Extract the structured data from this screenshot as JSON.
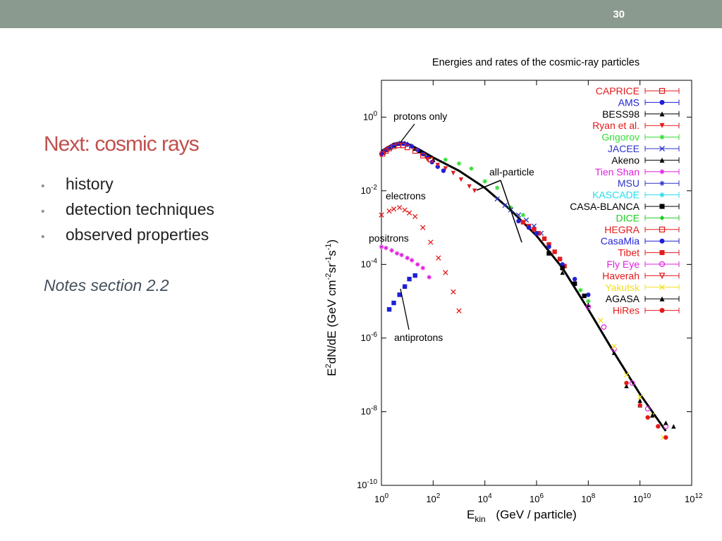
{
  "slide": {
    "number": "30",
    "title": "Next: cosmic rays",
    "bullets": [
      "history",
      "detection techniques",
      "observed properties"
    ],
    "notes": "Notes section 2.2"
  },
  "chart_data": {
    "type": "scatter",
    "title": "Energies and rates of the cosmic-ray particles",
    "xlabel_main": "E",
    "xlabel_sub": "kin",
    "xlabel_rest": "(GeV / particle)",
    "ylabel_main": "E",
    "ylabel_sup": "2",
    "ylabel_rest": "dN/dE   (GeV cm",
    "ylabel_units": [
      "-2",
      "sr",
      "-1",
      "s",
      "-1",
      ")"
    ],
    "x_scale": "log",
    "y_scale": "log",
    "xlim": [
      1,
      1000000000000
    ],
    "ylim": [
      1e-10,
      10
    ],
    "x_ticks": [
      {
        "exp": "0"
      },
      {
        "exp": "2"
      },
      {
        "exp": "4"
      },
      {
        "exp": "6"
      },
      {
        "exp": "8"
      },
      {
        "exp": "10"
      },
      {
        "exp": "12"
      }
    ],
    "y_ticks": [
      {
        "exp": "0"
      },
      {
        "exp": "-2"
      },
      {
        "exp": "-4"
      },
      {
        "exp": "-6"
      },
      {
        "exp": "-8"
      },
      {
        "exp": "-10"
      }
    ],
    "tick_base": "10",
    "grid": false,
    "legend_position": "top-right",
    "legend": [
      {
        "name": "CAPRICE",
        "color": "#e31a1c",
        "marker": "open-square"
      },
      {
        "name": "AMS",
        "color": "#1f1fd6",
        "marker": "circle"
      },
      {
        "name": "BESS98",
        "color": "#000000",
        "marker": "triangle"
      },
      {
        "name": "Ryan et al.",
        "color": "#e31a1c",
        "marker": "triangle-down"
      },
      {
        "name": "Grigorov",
        "color": "#33dd33",
        "marker": "asterisk"
      },
      {
        "name": "JACEE",
        "color": "#2b35c9",
        "marker": "cross"
      },
      {
        "name": "Akeno",
        "color": "#000000",
        "marker": "triangle"
      },
      {
        "name": "Tien Shan",
        "color": "#e020e0",
        "marker": "asterisk"
      },
      {
        "name": "MSU",
        "color": "#2b35c9",
        "marker": "asterisk"
      },
      {
        "name": "KASCADE",
        "color": "#22ddee",
        "marker": "asterisk"
      },
      {
        "name": "CASA-BLANCA",
        "color": "#000000",
        "marker": "square"
      },
      {
        "name": "DICE",
        "color": "#22cc22",
        "marker": "diamond"
      },
      {
        "name": "HEGRA",
        "color": "#e31a1c",
        "marker": "open-square"
      },
      {
        "name": "CasaMia",
        "color": "#1f1fd6",
        "marker": "circle"
      },
      {
        "name": "Tibet",
        "color": "#e31a1c",
        "marker": "square"
      },
      {
        "name": "Fly Eye",
        "color": "#e020e0",
        "marker": "open-circle"
      },
      {
        "name": "Haverah",
        "color": "#e31a1c",
        "marker": "open-triangle-down"
      },
      {
        "name": "Yakutsk",
        "color": "#f0e020",
        "marker": "cross"
      },
      {
        "name": "AGASA",
        "color": "#000000",
        "marker": "triangle"
      },
      {
        "name": "HiRes",
        "color": "#e31a1c",
        "marker": "circle"
      }
    ],
    "annotations": [
      "protons only",
      "all-particle",
      "electrons",
      "positrons",
      "antiprotons"
    ],
    "series": [
      {
        "name": "BESS98",
        "color": "#000000",
        "x": [
          1.2,
          1.6,
          2.2,
          3,
          4,
          5,
          6,
          8,
          10,
          14,
          20,
          30,
          45,
          70,
          100
        ],
        "y": [
          0.11,
          0.13,
          0.15,
          0.17,
          0.19,
          0.2,
          0.2,
          0.2,
          0.19,
          0.17,
          0.14,
          0.12,
          0.1,
          0.085,
          0.07
        ]
      },
      {
        "name": "AMS",
        "color": "#1f1fd6",
        "x": [
          1,
          1.3,
          1.8,
          2.5,
          3.5,
          5,
          7,
          10,
          15,
          25,
          40,
          60,
          90,
          150,
          250
        ],
        "y": [
          0.1,
          0.12,
          0.14,
          0.16,
          0.18,
          0.19,
          0.19,
          0.18,
          0.16,
          0.13,
          0.1,
          0.08,
          0.06,
          0.045,
          0.035
        ]
      },
      {
        "name": "CAPRICE",
        "color": "#e31a1c",
        "x": [
          1.1,
          1.5,
          2,
          3,
          4.5,
          7,
          10,
          20,
          40,
          80
        ],
        "y": [
          0.1,
          0.12,
          0.14,
          0.16,
          0.17,
          0.17,
          0.15,
          0.12,
          0.09,
          0.07
        ]
      },
      {
        "name": "Ryan et al.",
        "color": "#e31a1c",
        "x": [
          60,
          150,
          300,
          600,
          1200,
          2500,
          4000
        ],
        "y": [
          0.07,
          0.05,
          0.04,
          0.03,
          0.02,
          0.013,
          0.01
        ]
      },
      {
        "name": "Grigorov",
        "color": "#33dd33",
        "x": [
          300,
          1000,
          3000,
          10000,
          30000,
          100000,
          300000,
          50000000,
          100000000
        ],
        "y": [
          0.07,
          0.055,
          0.04,
          0.018,
          0.012,
          0.0035,
          0.0022,
          2e-05,
          1e-05
        ]
      },
      {
        "name": "JACEE",
        "color": "#2b35c9",
        "x": [
          30000,
          60000,
          100000,
          200000,
          400000,
          800000,
          1500000
        ],
        "y": [
          0.006,
          0.004,
          0.003,
          0.0022,
          0.0016,
          0.0011,
          0.0007
        ]
      },
      {
        "name": "Tibet",
        "color": "#e31a1c",
        "x": [
          300000,
          500000,
          800000,
          1200000,
          2000000,
          3000000,
          5000000,
          8000000,
          12000000
        ],
        "y": [
          0.0014,
          0.0011,
          0.0009,
          0.0007,
          0.0005,
          0.00035,
          0.00022,
          0.00014,
          9e-05
        ]
      },
      {
        "name": "CasaMia",
        "color": "#1f1fd6",
        "x": [
          200000,
          500000,
          1000000,
          3000000,
          10000000,
          30000000,
          100000000
        ],
        "y": [
          0.0015,
          0.001,
          0.0007,
          0.0003,
          0.0001,
          4e-05,
          1.5e-05
        ]
      },
      {
        "name": "CASA-BLANCA",
        "color": "#000000",
        "x": [
          3000000,
          10000000,
          30000000,
          70000000
        ],
        "y": [
          0.0002,
          8e-05,
          3e-05,
          1.4e-05
        ]
      },
      {
        "name": "Akeno",
        "color": "#000000",
        "x": [
          10000000,
          100000000,
          1000000000,
          10000000000
        ],
        "y": [
          6e-05,
          8e-06,
          4e-07,
          2e-08
        ]
      },
      {
        "name": "Fly Eye",
        "color": "#e020e0",
        "x": [
          100000000,
          400000000,
          1000000000,
          5000000000,
          20000000000,
          100000000000
        ],
        "y": [
          7e-06,
          2e-06,
          5e-07,
          6e-08,
          1.2e-08,
          4e-09
        ]
      },
      {
        "name": "Yakutsk",
        "color": "#f0e020",
        "x": [
          300000000,
          1000000000,
          3000000000,
          10000000000,
          30000000000,
          80000000000
        ],
        "y": [
          3e-06,
          6e-07,
          1e-07,
          2.5e-08,
          8e-09,
          2e-09
        ]
      },
      {
        "name": "AGASA",
        "color": "#000000",
        "x": [
          3000000000,
          10000000000,
          30000000000,
          100000000000,
          200000000000
        ],
        "y": [
          5e-08,
          1.5e-08,
          8e-09,
          5e-09,
          4e-09
        ]
      },
      {
        "name": "HiRes",
        "color": "#e31a1c",
        "x": [
          3000000000,
          10000000000,
          20000000000,
          50000000000,
          100000000000
        ],
        "y": [
          6e-08,
          1.5e-08,
          7e-09,
          4e-09,
          2e-09
        ]
      },
      {
        "name": "electrons",
        "color": "#e31a1c",
        "x": [
          1,
          2,
          3,
          5,
          8,
          12,
          20,
          40,
          80,
          160,
          300,
          600,
          1000
        ],
        "y": [
          0.0022,
          0.0028,
          0.0032,
          0.0035,
          0.003,
          0.0025,
          0.002,
          0.001,
          0.0004,
          0.00015,
          6e-05,
          1.8e-05,
          5.5e-06
        ]
      },
      {
        "name": "positrons",
        "color": "#e020e0",
        "x": [
          1,
          1.5,
          2.5,
          4,
          6,
          10,
          15,
          25,
          40,
          70
        ],
        "y": [
          0.0003,
          0.00028,
          0.00024,
          0.0002,
          0.00018,
          0.00015,
          0.00013,
          0.0001,
          8e-05,
          4.5e-05
        ]
      },
      {
        "name": "antiprotons",
        "color": "#1f1fd6",
        "x": [
          2,
          3,
          5,
          8,
          12,
          20
        ],
        "y": [
          6e-06,
          9e-06,
          1.5e-05,
          2.5e-05,
          4e-05,
          5e-05
        ]
      }
    ],
    "all_particle_curve": {
      "x": [
        1,
        3,
        6,
        10,
        30,
        100,
        1000,
        10000,
        100000,
        1000000,
        10000000,
        100000000,
        1000000000,
        10000000000,
        100000000000
      ],
      "y": [
        0.12,
        0.19,
        0.2,
        0.19,
        0.13,
        0.08,
        0.035,
        0.012,
        0.003,
        0.0006,
        8e-05,
        6e-06,
        4e-07,
        3e-08,
        3e-09
      ]
    }
  }
}
